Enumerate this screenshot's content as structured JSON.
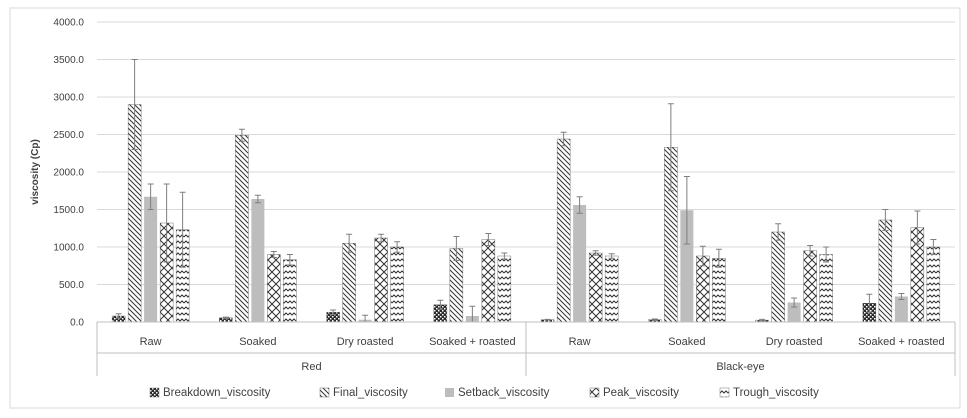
{
  "chart_data": {
    "type": "bar",
    "ylabel": "viscosity (Cp)",
    "ylim": [
      0,
      4000
    ],
    "yticks": [
      "0.0",
      "500.0",
      "1000.0",
      "1500.0",
      "2000.0",
      "2500.0",
      "3000.0",
      "3500.0",
      "4000.0"
    ],
    "groups": [
      {
        "label": "Red",
        "categories": [
          "Raw",
          "Soaked",
          "Dry roasted",
          "Soaked + roasted"
        ]
      },
      {
        "label": "Black-eye",
        "categories": [
          "Raw",
          "Soaked",
          "Dry roasted",
          "Soaked + roasted"
        ]
      }
    ],
    "series": [
      {
        "name": "Breakdown_viscosity",
        "values": [
          80,
          55,
          130,
          230,
          30,
          30,
          25,
          250
        ],
        "errors": [
          30,
          10,
          30,
          60,
          5,
          10,
          10,
          120
        ]
      },
      {
        "name": "Final_viscosity",
        "values": [
          2900,
          2490,
          1050,
          980,
          2440,
          2330,
          1200,
          1360
        ],
        "errors": [
          600,
          80,
          120,
          160,
          90,
          580,
          110,
          140
        ]
      },
      {
        "name": "Setback_viscosity",
        "values": [
          1670,
          1640,
          30,
          80,
          1560,
          1490,
          260,
          340
        ],
        "errors": [
          170,
          50,
          60,
          130,
          110,
          450,
          60,
          40
        ]
      },
      {
        "name": "Peak_viscosity",
        "values": [
          1320,
          900,
          1120,
          1100,
          920,
          880,
          950,
          1260
        ],
        "errors": [
          520,
          40,
          50,
          80,
          30,
          130,
          70,
          220
        ]
      },
      {
        "name": "Trough_viscosity",
        "values": [
          1230,
          830,
          1000,
          880,
          880,
          850,
          900,
          1000
        ],
        "errors": [
          500,
          70,
          70,
          40,
          30,
          120,
          100,
          100
        ]
      }
    ],
    "legend_position": "bottom",
    "grid": true
  }
}
